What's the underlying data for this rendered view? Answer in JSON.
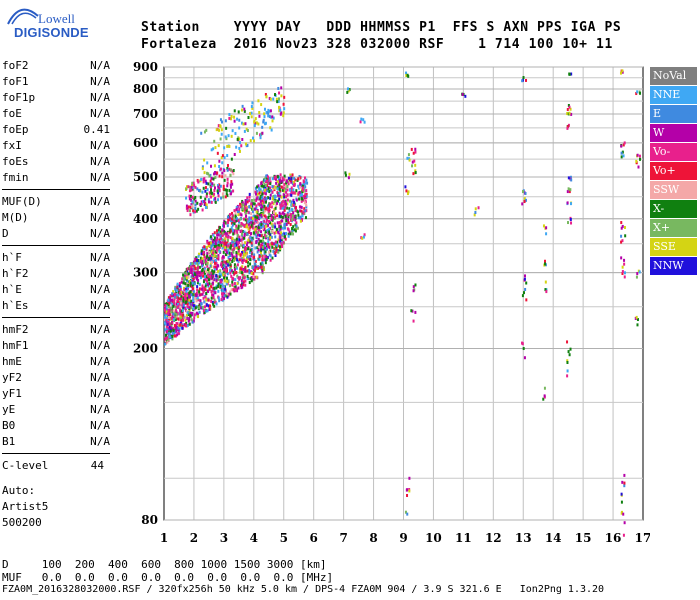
{
  "logo": {
    "line1": "Lowell",
    "line2": "DIGISONDE"
  },
  "header": {
    "line1": "Station    YYYY DAY   DDD HHMMSS P1  FFS S AXN PPS IGA PS",
    "line2": "Fortaleza  2016 Nov23 328 032000 RSF    1 714 100 10+ 11"
  },
  "params": {
    "group1": [
      {
        "name": "foF2",
        "value": "N/A"
      },
      {
        "name": "foF1",
        "value": "N/A"
      },
      {
        "name": "foF1p",
        "value": "N/A"
      },
      {
        "name": "foE",
        "value": "N/A"
      },
      {
        "name": "foEp",
        "value": "0.41"
      },
      {
        "name": "fxI",
        "value": "N/A"
      },
      {
        "name": "foEs",
        "value": "N/A"
      },
      {
        "name": "fmin",
        "value": "N/A"
      }
    ],
    "group2": [
      {
        "name": "MUF(D)",
        "value": "N/A"
      },
      {
        "name": "M(D)",
        "value": "N/A"
      },
      {
        "name": "D",
        "value": "N/A"
      }
    ],
    "group3": [
      {
        "name": "h`F",
        "value": "N/A"
      },
      {
        "name": "h`F2",
        "value": "N/A"
      },
      {
        "name": "h`E",
        "value": "N/A"
      },
      {
        "name": "h`Es",
        "value": "N/A"
      }
    ],
    "group4": [
      {
        "name": "hmF2",
        "value": "N/A"
      },
      {
        "name": "hmF1",
        "value": "N/A"
      },
      {
        "name": "hmE",
        "value": "N/A"
      },
      {
        "name": "yF2",
        "value": "N/A"
      },
      {
        "name": "yF1",
        "value": "N/A"
      },
      {
        "name": "yE",
        "value": "N/A"
      },
      {
        "name": "B0",
        "value": "N/A"
      },
      {
        "name": "B1",
        "value": "N/A"
      }
    ],
    "clevel": {
      "name": "C-level",
      "value": "44"
    }
  },
  "auto": {
    "label": "Auto:",
    "program": "Artist5",
    "version": "500200"
  },
  "legend": [
    {
      "label": "NoVal",
      "color": "#7f7f7f"
    },
    {
      "label": "NNE",
      "color": "#3fa8f4"
    },
    {
      "label": "E",
      "color": "#3f8ae0"
    },
    {
      "label": "W",
      "color": "#b400a8"
    },
    {
      "label": "Vo-",
      "color": "#e8208c"
    },
    {
      "label": "Vo+",
      "color": "#ee1438"
    },
    {
      "label": "SSW",
      "color": "#f4a8a8"
    },
    {
      "label": "X-",
      "color": "#108010"
    },
    {
      "label": "X+",
      "color": "#78b860"
    },
    {
      "label": "SSE",
      "color": "#d4d414"
    },
    {
      "label": "NNW",
      "color": "#2010dc"
    }
  ],
  "chart_data": {
    "type": "scatter",
    "xlim": [
      1,
      17
    ],
    "ylim": [
      80,
      900
    ],
    "xticks": [
      "1",
      "2",
      "3",
      "4",
      "5",
      "6",
      "7",
      "8",
      "9",
      "10",
      "11",
      "12",
      "13",
      "14",
      "15",
      "16",
      "17"
    ],
    "yticks": [
      "80",
      "200",
      "300",
      "400",
      "500",
      "600",
      "700",
      "800",
      "900"
    ],
    "y_scale": "log",
    "grid": true
  },
  "footer": {
    "d_row": "D     100  200  400  600  800 1000 1500 3000 [km]",
    "muf_row": "MUF   0.0  0.0  0.0  0.0  0.0  0.0  0.0  0.0 [MHz]",
    "file_row": "FZA0M_2016328032000.RSF / 320fx256h 50 kHz 5.0 km / DPS-4 FZA0M 904 / 3.9 S 321.6 E   Ion2Png 1.3.20"
  }
}
